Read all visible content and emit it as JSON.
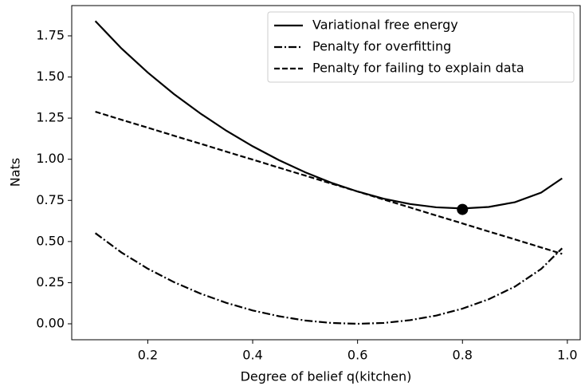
{
  "chart_data": {
    "type": "line",
    "x_label": "Degree of belief q(kitchen)",
    "y_label": "Nats",
    "x": [
      0.1,
      0.15,
      0.2,
      0.25,
      0.3,
      0.35,
      0.4,
      0.45,
      0.5,
      0.55,
      0.6,
      0.65,
      0.7,
      0.75,
      0.8,
      0.85,
      0.9,
      0.95,
      0.99
    ],
    "series": [
      {
        "name": "Variational free energy",
        "color": "#000000",
        "style": "solid",
        "values": [
          1.84,
          1.673,
          1.527,
          1.396,
          1.279,
          1.173,
          1.079,
          0.995,
          0.921,
          0.857,
          0.804,
          0.76,
          0.728,
          0.708,
          0.701,
          0.71,
          0.739,
          0.797,
          0.884
        ]
      },
      {
        "name": "Penalty for overfitting",
        "color": "#000000",
        "style": "dashdot",
        "values": [
          0.551,
          0.433,
          0.335,
          0.253,
          0.184,
          0.127,
          0.081,
          0.046,
          0.02,
          0.005,
          0.0,
          0.005,
          0.022,
          0.05,
          0.092,
          0.149,
          0.226,
          0.333,
          0.459
        ]
      },
      {
        "name": "Penalty for failing to explain data",
        "color": "#000000",
        "style": "dashed",
        "values": [
          1.289,
          1.24,
          1.192,
          1.143,
          1.095,
          1.046,
          0.998,
          0.949,
          0.901,
          0.852,
          0.804,
          0.755,
          0.707,
          0.658,
          0.61,
          0.561,
          0.513,
          0.464,
          0.425
        ]
      }
    ],
    "marker": {
      "x": 0.8,
      "y": 0.695,
      "color": "#000000"
    },
    "xlim": [
      0.055,
      1.0245
    ],
    "ylim": [
      -0.097,
      1.934
    ],
    "xticks": [
      0.2,
      0.4,
      0.6,
      0.8,
      {
        "value": 1,
        "label": "1.0"
      }
    ],
    "yticks": [
      {
        "value": 0,
        "label": "0.00"
      },
      {
        "value": 0.25,
        "label": "0.25"
      },
      {
        "value": 0.5,
        "label": "0.50"
      },
      {
        "value": 0.75,
        "label": "0.75"
      },
      {
        "value": 1,
        "label": "1.00"
      },
      {
        "value": 1.25,
        "label": "1.25"
      },
      {
        "value": 1.5,
        "label": "1.50"
      },
      {
        "value": 1.75,
        "label": "1.75"
      }
    ],
    "legend": "upper right",
    "grid": false
  }
}
